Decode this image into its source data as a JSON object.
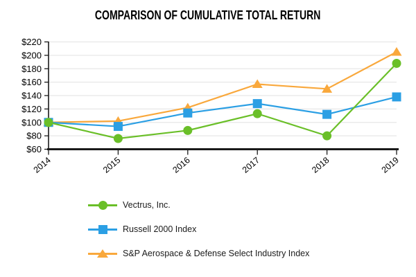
{
  "title": "COMPARISON OF CUMULATIVE TOTAL RETURN",
  "chart_data": {
    "type": "line",
    "title": "COMPARISON OF CUMULATIVE TOTAL RETURN",
    "categories": [
      "2014",
      "2015",
      "2016",
      "2017",
      "2018",
      "2019"
    ],
    "series": [
      {
        "name": "Vectrus, Inc.",
        "marker": "circle",
        "color": "#6ABF28",
        "values": [
          100,
          76,
          88,
          113,
          80,
          188
        ]
      },
      {
        "name": "Russell 2000 Index",
        "marker": "square",
        "color": "#2B9FE4",
        "values": [
          100,
          94,
          114,
          128,
          112,
          138
        ]
      },
      {
        "name": "S&P Aerospace & Defense Select Industry Index",
        "marker": "triangle",
        "color": "#F9A83C",
        "values": [
          100,
          102,
          122,
          157,
          150,
          205
        ]
      }
    ],
    "xlabel": "",
    "ylabel": "",
    "y_min": 60,
    "y_max": 220,
    "y_step": 20,
    "y_prefix": "$",
    "y_tick_labels": [
      "$60",
      "$80",
      "$100",
      "$120",
      "$140",
      "$160",
      "$180",
      "$200",
      "$220"
    ],
    "grid": true,
    "x_label_rotation": -40,
    "legend_position": "bottom-left",
    "colors": {
      "gridline": "#E7E7E7",
      "axis": "#1A1A1A",
      "text": "#000000"
    }
  }
}
